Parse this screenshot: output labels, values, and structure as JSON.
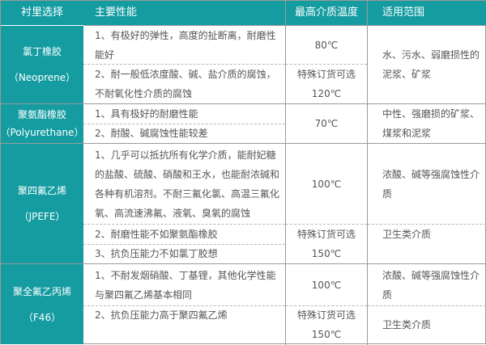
{
  "header": [
    "衬里选择",
    "主要性能",
    "最高介质温度",
    "适用范围"
  ],
  "rows": [
    {
      "name": "氯丁橡胶",
      "code": "（Neoprene）",
      "props": [
        "1、有极好的弹性，高度的扯断离，耐磨性能好",
        "2、耐一般低浓度酸、碱、盐介质的腐蚀，不耐氧化性介质的腐蚀"
      ],
      "temps": [
        "80℃",
        "特殊订货可选",
        "120℃"
      ],
      "scope": [
        "水、污水、弱磨损性的泥浆、矿浆"
      ]
    },
    {
      "name": "聚氨酯橡胶",
      "code": "（Polyurethane）",
      "props": [
        "1、具有极好的耐磨性能",
        "2、耐酸、碱腐蚀性能较差"
      ],
      "temps": [
        "70℃"
      ],
      "scope": [
        "中性、强磨损的矿浆、煤浆和泥浆"
      ]
    },
    {
      "name": "聚四氟乙烯",
      "code": "（JPEFE）",
      "props": [
        "1、几乎可以抵抗所有化学介质，能耐妃糖的盐酸、硫酸、硝酸和王水，也能耐浓碱和各种有机溶剂。不耐三氟化氯、高温三氟化氧、高流速沸氟、液氧、臭氧的腐蚀",
        "2、耐磨性能不如聚氨酯橡胶",
        "3、抗负压能力不如氯丁胶想"
      ],
      "temps": [
        "100℃",
        "特殊订货可选",
        "150℃"
      ],
      "scope": [
        "浓酸、碱等强腐蚀性介质",
        "卫生类介质"
      ]
    },
    {
      "name": "聚全氟乙丙烯",
      "code": "（F46）",
      "props": [
        "1、不耐发烟硝酸、丁基锂，其他化学性能与聚四氟乙烯基本相同",
        "2、抗负压能力高于聚四氟乙烯"
      ],
      "temps": [
        "100℃",
        "特殊订货可选",
        "150℃"
      ],
      "scope": [
        "浓酸、碱等强腐蚀性介质",
        "卫生类介质"
      ]
    }
  ],
  "colors": {
    "accent": "#149ca1",
    "border": "#9a9a9a",
    "text": "#555555"
  }
}
